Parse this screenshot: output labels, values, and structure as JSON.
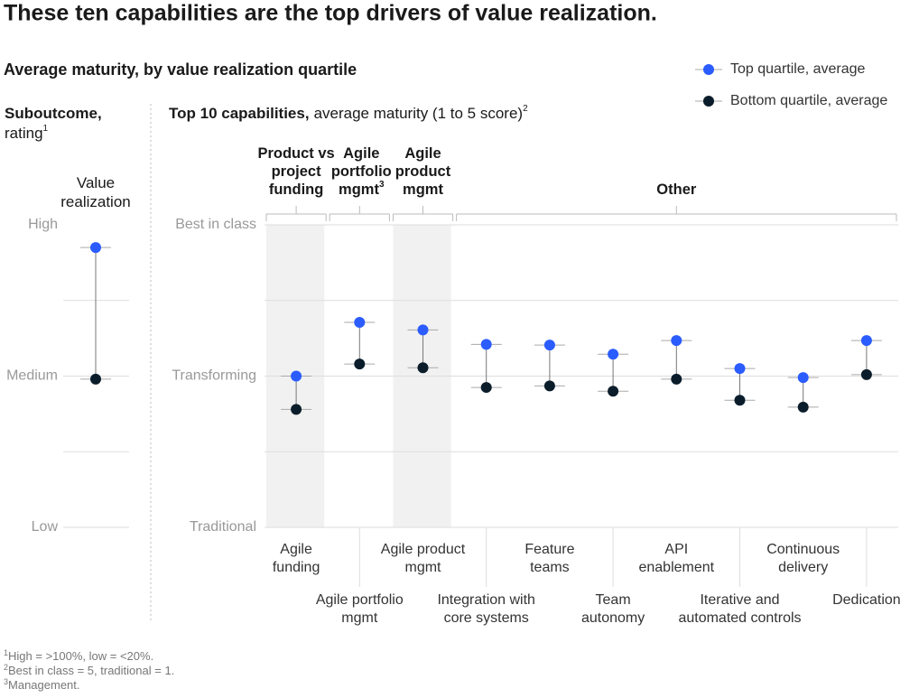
{
  "title": "These ten capabilities are the top drivers of value realization.",
  "subtitle": "Average maturity, by value realization quartile",
  "footnotes": [
    {
      "mark": "1",
      "text": "High = >100%, low = <20%."
    },
    {
      "mark": "2",
      "text": "Best in class = 5, traditional = 1."
    },
    {
      "mark": "3",
      "text": "Management."
    }
  ],
  "chart_data": [
    {
      "type": "dot_range",
      "title": "Suboutcome,",
      "subtitle": "rating",
      "subtitle_note": "1",
      "categories": [
        [
          "Value",
          "realization"
        ]
      ],
      "series": [
        {
          "color": "#2b5cff",
          "values": [
            1.85
          ]
        },
        {
          "color": "#0b1d2b",
          "values": [
            0.98
          ]
        }
      ],
      "ylim": [
        0,
        2
      ],
      "yticks": [
        {
          "value": 0,
          "label": "Low"
        },
        {
          "value": 1,
          "label": "Medium"
        },
        {
          "value": 2,
          "label": "High"
        }
      ],
      "minor_yticks": [
        0.5,
        1.5
      ]
    },
    {
      "type": "dot_range",
      "title": "Top 10 capabilities,",
      "subtitle": "average maturity (1 to 5 score)",
      "subtitle_note": "2",
      "groups": [
        {
          "label": [
            "Product vs",
            "project",
            "funding"
          ],
          "from": 0,
          "to": 0
        },
        {
          "label": [
            "Agile",
            "portfolio",
            "mgmt"
          ],
          "note": "3",
          "from": 1,
          "to": 1
        },
        {
          "label": [
            "Agile",
            "product",
            "mgmt"
          ],
          "from": 2,
          "to": 2
        },
        {
          "label": [
            "Other"
          ],
          "from": 3,
          "to": 9
        }
      ],
      "shaded_categories": [
        0,
        2
      ],
      "categories": [
        [
          "Agile",
          "funding"
        ],
        [
          "Agile portfolio",
          "mgmt"
        ],
        [
          "Agile product",
          "mgmt"
        ],
        [
          "Integration with",
          "core systems"
        ],
        [
          "Feature",
          "teams"
        ],
        [
          "Team",
          "autonomy"
        ],
        [
          "API",
          "enablement"
        ],
        [
          "Iterative and",
          "automated controls"
        ],
        [
          "Continuous",
          "delivery"
        ],
        [
          "Dedication"
        ]
      ],
      "series": [
        {
          "name": "Top quartile, average",
          "color": "#2b5cff",
          "values": [
            3.0,
            3.71,
            3.61,
            3.42,
            3.41,
            3.29,
            3.47,
            3.1,
            2.98,
            3.47
          ]
        },
        {
          "name": "Bottom quartile, average",
          "color": "#0b1d2b",
          "values": [
            2.56,
            3.16,
            3.11,
            2.85,
            2.87,
            2.8,
            2.96,
            2.68,
            2.59,
            3.02
          ]
        }
      ],
      "ylim": [
        1,
        5
      ],
      "yticks": [
        {
          "value": 1,
          "label": "Traditional"
        },
        {
          "value": 3,
          "label": "Transforming"
        },
        {
          "value": 5,
          "label": "Best in class"
        }
      ],
      "minor_yticks": [
        2,
        4
      ],
      "legend": "top-right"
    }
  ]
}
